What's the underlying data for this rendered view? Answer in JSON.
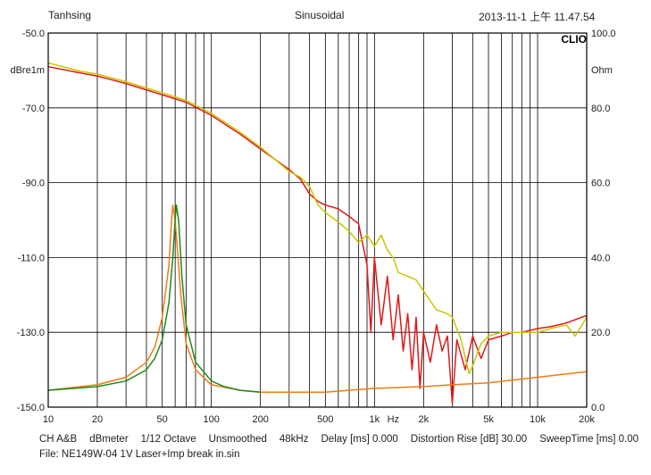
{
  "header": {
    "left": "Tanhsing",
    "center": "Sinusoidal",
    "right": "2013-11-1 上午 11.47.54",
    "brand": "CLIO"
  },
  "footer": {
    "line1": [
      "CH A&B",
      "dBmeter",
      "1/12 Octave",
      "Unsmoothed",
      "48kHz",
      "Delay [ms] 0.000",
      "Distortion Rise [dB] 30.00",
      "SweepTime [ms] 0.00"
    ],
    "file": "File: NE149W-04 1V Laser+Imp break in.sin"
  },
  "colors": {
    "red": "#e21818",
    "yellow": "#c8c800",
    "orange": "#f07c14",
    "green": "#1e8a1e",
    "grid": "#000000",
    "border": "#000000"
  },
  "chart_data": {
    "type": "line",
    "x_scale": "log",
    "xlim": [
      10,
      20000
    ],
    "ylim_left": [
      -150,
      -50
    ],
    "ylim_right": [
      0,
      100
    ],
    "ylabel_left": "dBre1m",
    "ylabel_right": "Ohm",
    "xlabel": "Hz",
    "x_ticks": [
      {
        "v": 10,
        "label": "10"
      },
      {
        "v": 20,
        "label": "20"
      },
      {
        "v": 50,
        "label": "50"
      },
      {
        "v": 100,
        "label": "100"
      },
      {
        "v": 200,
        "label": "200"
      },
      {
        "v": 500,
        "label": "500"
      },
      {
        "v": 1000,
        "label": "1k"
      },
      {
        "v": 2000,
        "label": "2k"
      },
      {
        "v": 5000,
        "label": "5k"
      },
      {
        "v": 10000,
        "label": "10k"
      },
      {
        "v": 20000,
        "label": "20k"
      }
    ],
    "y_ticks_left": [
      "-50.0",
      "-70.0",
      "-90.0",
      "-110.0",
      "-130.0",
      "-150.0"
    ],
    "y_ticks_right": [
      "100.0",
      "80.0",
      "60.0",
      "40.0",
      "20.0",
      "0.0"
    ],
    "series": [
      {
        "color": "red",
        "axis": "left",
        "points": [
          [
            10,
            -59
          ],
          [
            15,
            -60.5
          ],
          [
            20,
            -61.5
          ],
          [
            30,
            -63.5
          ],
          [
            50,
            -66.5
          ],
          [
            70,
            -68.5
          ],
          [
            100,
            -72
          ],
          [
            150,
            -77
          ],
          [
            200,
            -81
          ],
          [
            300,
            -86.5
          ],
          [
            350,
            -89
          ],
          [
            400,
            -93
          ],
          [
            450,
            -95
          ],
          [
            500,
            -96
          ],
          [
            600,
            -97
          ],
          [
            700,
            -99
          ],
          [
            800,
            -101
          ],
          [
            900,
            -112
          ],
          [
            950,
            -130
          ],
          [
            1000,
            -110
          ],
          [
            1100,
            -128
          ],
          [
            1200,
            -115
          ],
          [
            1300,
            -132
          ],
          [
            1400,
            -120
          ],
          [
            1500,
            -135
          ],
          [
            1600,
            -125
          ],
          [
            1700,
            -140
          ],
          [
            1800,
            -126
          ],
          [
            1900,
            -145
          ],
          [
            2000,
            -130
          ],
          [
            2200,
            -138
          ],
          [
            2400,
            -128
          ],
          [
            2600,
            -135
          ],
          [
            2800,
            -131
          ],
          [
            3000,
            -149
          ],
          [
            3200,
            -132
          ],
          [
            3600,
            -140
          ],
          [
            4000,
            -131
          ],
          [
            4500,
            -137
          ],
          [
            5000,
            -132
          ],
          [
            6000,
            -131
          ],
          [
            7000,
            -130
          ],
          [
            8000,
            -130
          ],
          [
            10000,
            -129
          ],
          [
            12000,
            -128.5
          ],
          [
            15000,
            -127.5
          ],
          [
            20000,
            -125.5
          ]
        ]
      },
      {
        "color": "yellow",
        "axis": "left",
        "points": [
          [
            10,
            -58
          ],
          [
            15,
            -60
          ],
          [
            20,
            -61
          ],
          [
            30,
            -63
          ],
          [
            50,
            -66
          ],
          [
            70,
            -68
          ],
          [
            100,
            -71.5
          ],
          [
            150,
            -76.5
          ],
          [
            200,
            -80.5
          ],
          [
            300,
            -87
          ],
          [
            350,
            -88.5
          ],
          [
            400,
            -91
          ],
          [
            450,
            -96
          ],
          [
            500,
            -98
          ],
          [
            600,
            -100.5
          ],
          [
            700,
            -103
          ],
          [
            800,
            -106
          ],
          [
            900,
            -104
          ],
          [
            1000,
            -107
          ],
          [
            1100,
            -104
          ],
          [
            1200,
            -108
          ],
          [
            1300,
            -110
          ],
          [
            1400,
            -114
          ],
          [
            1600,
            -115
          ],
          [
            1800,
            -116
          ],
          [
            2000,
            -119
          ],
          [
            2400,
            -124
          ],
          [
            2800,
            -125
          ],
          [
            3000,
            -126
          ],
          [
            3400,
            -132
          ],
          [
            3800,
            -141
          ],
          [
            4000,
            -139
          ],
          [
            4500,
            -133
          ],
          [
            5000,
            -131
          ],
          [
            6000,
            -130
          ],
          [
            7000,
            -130
          ],
          [
            8000,
            -130
          ],
          [
            10000,
            -130
          ],
          [
            12000,
            -129
          ],
          [
            15000,
            -128
          ],
          [
            17000,
            -131
          ],
          [
            20000,
            -126
          ]
        ]
      },
      {
        "color": "orange",
        "axis": "right",
        "points": [
          [
            10,
            4.5
          ],
          [
            20,
            6
          ],
          [
            30,
            8
          ],
          [
            40,
            12
          ],
          [
            45,
            16
          ],
          [
            50,
            24
          ],
          [
            55,
            38
          ],
          [
            57,
            50
          ],
          [
            58,
            54
          ],
          [
            60,
            50
          ],
          [
            65,
            30
          ],
          [
            70,
            17
          ],
          [
            80,
            10
          ],
          [
            100,
            6
          ],
          [
            150,
            4.5
          ],
          [
            200,
            4
          ],
          [
            300,
            4
          ],
          [
            400,
            4
          ],
          [
            500,
            4
          ],
          [
            700,
            4.5
          ],
          [
            1000,
            5
          ],
          [
            2000,
            5.5
          ],
          [
            3000,
            6
          ],
          [
            5000,
            6.5
          ],
          [
            10000,
            8
          ],
          [
            20000,
            9.5
          ]
        ]
      },
      {
        "color": "green",
        "axis": "right",
        "points": [
          [
            10,
            4.5
          ],
          [
            20,
            5.5
          ],
          [
            30,
            7
          ],
          [
            40,
            10
          ],
          [
            45,
            13
          ],
          [
            50,
            18
          ],
          [
            55,
            28
          ],
          [
            58,
            40
          ],
          [
            60,
            50
          ],
          [
            61,
            54
          ],
          [
            63,
            50
          ],
          [
            66,
            35
          ],
          [
            70,
            22
          ],
          [
            80,
            12
          ],
          [
            100,
            7
          ],
          [
            120,
            5.5
          ],
          [
            150,
            4.5
          ],
          [
            200,
            4
          ]
        ]
      }
    ]
  }
}
